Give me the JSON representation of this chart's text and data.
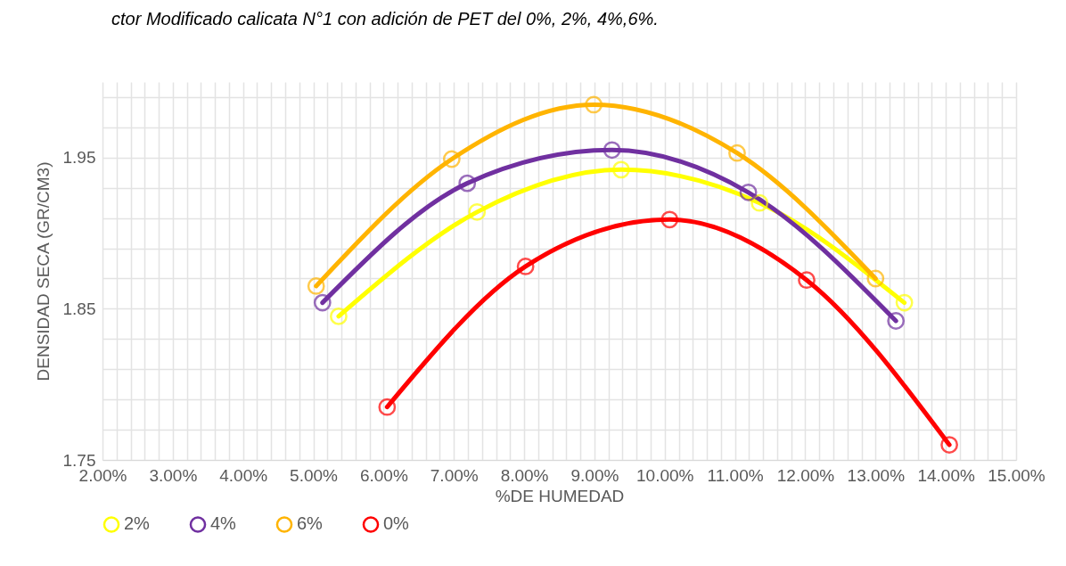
{
  "chart_data": {
    "type": "line",
    "title": "ctor Modificado calicata N°1 con adición de PET del 0%, 2%, 4%,6%.",
    "xlabel": "%DE HUMEDAD",
    "ylabel": "DENSIDAD SECA (GR/CM3)",
    "xlim": [
      2,
      15
    ],
    "ylim": [
      1.75,
      2.0
    ],
    "xticks": [
      {
        "value": 2,
        "label": "2.00%"
      },
      {
        "value": 2.2,
        "label": null
      },
      {
        "value": 2.4,
        "label": null
      },
      {
        "value": 2.6,
        "label": null
      },
      {
        "value": 2.8,
        "label": null
      },
      {
        "value": 3,
        "label": "3.00%"
      },
      {
        "value": 3.2,
        "label": null
      },
      {
        "value": 3.4,
        "label": null
      },
      {
        "value": 3.6,
        "label": null
      },
      {
        "value": 3.8,
        "label": null
      },
      {
        "value": 4,
        "label": "4.00%"
      },
      {
        "value": 4.2,
        "label": null
      },
      {
        "value": 4.4,
        "label": null
      },
      {
        "value": 4.6,
        "label": null
      },
      {
        "value": 4.8,
        "label": null
      },
      {
        "value": 5,
        "label": "5.00%"
      },
      {
        "value": 5.2,
        "label": null
      },
      {
        "value": 5.4,
        "label": null
      },
      {
        "value": 5.6,
        "label": null
      },
      {
        "value": 5.8,
        "label": null
      },
      {
        "value": 6,
        "label": "6.00%"
      },
      {
        "value": 6.2,
        "label": null
      },
      {
        "value": 6.4,
        "label": null
      },
      {
        "value": 6.6,
        "label": null
      },
      {
        "value": 6.8,
        "label": null
      },
      {
        "value": 7,
        "label": "7.00%"
      },
      {
        "value": 7.2,
        "label": null
      },
      {
        "value": 7.4,
        "label": null
      },
      {
        "value": 7.6,
        "label": null
      },
      {
        "value": 7.8,
        "label": null
      },
      {
        "value": 8,
        "label": "8.00%"
      },
      {
        "value": 8.2,
        "label": null
      },
      {
        "value": 8.4,
        "label": null
      },
      {
        "value": 8.6,
        "label": null
      },
      {
        "value": 8.8,
        "label": null
      },
      {
        "value": 9,
        "label": "9.00%"
      },
      {
        "value": 9.2,
        "label": null
      },
      {
        "value": 9.4,
        "label": null
      },
      {
        "value": 9.6,
        "label": null
      },
      {
        "value": 9.8,
        "label": null
      },
      {
        "value": 10,
        "label": "10.00%"
      },
      {
        "value": 10.2,
        "label": null
      },
      {
        "value": 10.4,
        "label": null
      },
      {
        "value": 10.6,
        "label": null
      },
      {
        "value": 10.8,
        "label": null
      },
      {
        "value": 11,
        "label": "11.00%"
      },
      {
        "value": 11.2,
        "label": null
      },
      {
        "value": 11.4,
        "label": null
      },
      {
        "value": 11.6,
        "label": null
      },
      {
        "value": 11.8,
        "label": null
      },
      {
        "value": 12,
        "label": "12.00%"
      },
      {
        "value": 12.2,
        "label": null
      },
      {
        "value": 12.4,
        "label": null
      },
      {
        "value": 12.6,
        "label": null
      },
      {
        "value": 12.8,
        "label": null
      },
      {
        "value": 13,
        "label": "13.00%"
      },
      {
        "value": 13.2,
        "label": null
      },
      {
        "value": 13.4,
        "label": null
      },
      {
        "value": 13.6,
        "label": null
      },
      {
        "value": 13.8,
        "label": null
      },
      {
        "value": 14,
        "label": "14.00%"
      },
      {
        "value": 14.2,
        "label": null
      },
      {
        "value": 14.4,
        "label": null
      },
      {
        "value": 14.6,
        "label": null
      },
      {
        "value": 14.8,
        "label": null
      },
      {
        "value": 15,
        "label": "15.00%"
      }
    ],
    "yticks": [
      1.75,
      {
        "value": 1.77,
        "label": null
      },
      {
        "value": 1.79,
        "label": null
      },
      {
        "value": 1.81,
        "label": null
      },
      {
        "value": 1.83,
        "label": null
      },
      1.85,
      {
        "value": 1.87,
        "label": null
      },
      {
        "value": 1.89,
        "label": null
      },
      {
        "value": 1.91,
        "label": null
      },
      {
        "value": 1.93,
        "label": null
      },
      1.95,
      {
        "value": 1.97,
        "label": null
      },
      {
        "value": 1.99,
        "label": null
      }
    ],
    "grid": true,
    "legend": "bottom",
    "marker": "circle",
    "line_style": "solid",
    "series": [
      {
        "name": "2%",
        "color": "#ffff00",
        "x": [
          5.36,
          7.33,
          9.38,
          11.35,
          13.41
        ],
        "values": [
          1.845,
          1.914,
          1.942,
          1.92,
          1.854
        ]
      },
      {
        "name": "4%",
        "color": "#7030a0",
        "x": [
          5.13,
          7.19,
          9.25,
          11.19,
          13.29
        ],
        "values": [
          1.854,
          1.933,
          1.955,
          1.927,
          1.842
        ]
      },
      {
        "name": "6%",
        "color": "#ffb400",
        "x": [
          5.04,
          6.97,
          8.99,
          11.03,
          13.0
        ],
        "values": [
          1.865,
          1.949,
          1.985,
          1.953,
          1.87
        ]
      },
      {
        "name": "0%",
        "color": "#ff0000",
        "x": [
          6.05,
          8.02,
          10.07,
          12.02,
          14.05
        ],
        "values": [
          1.785,
          1.878,
          1.909,
          1.869,
          1.76
        ]
      }
    ]
  }
}
